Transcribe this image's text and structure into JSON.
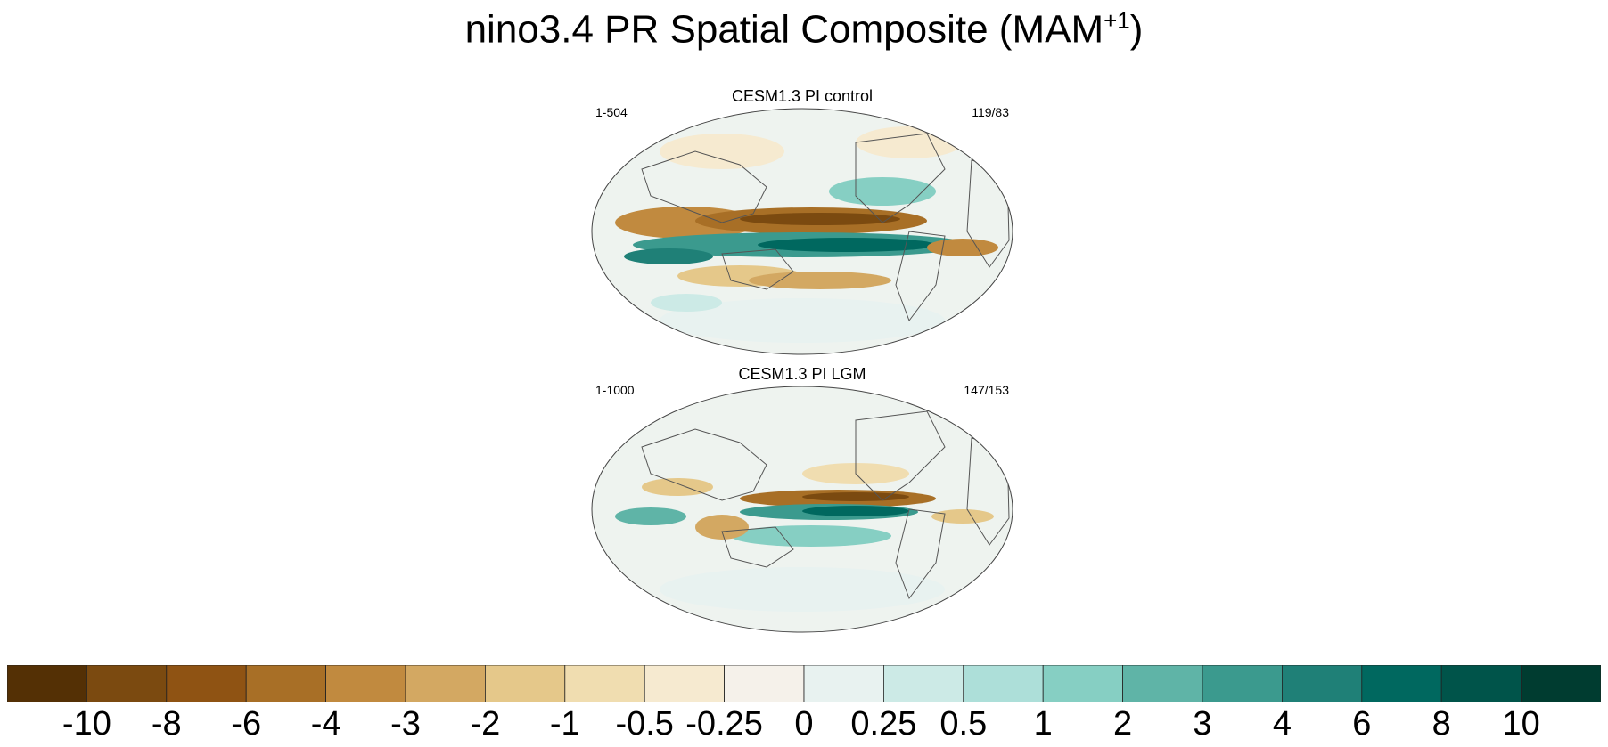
{
  "title": {
    "main": "nino3.4 PR Spatial Composite (MAM",
    "sup": "+1",
    "close": ")"
  },
  "panels": [
    {
      "title": "CESM1.3 PI control",
      "left_label": "1-504",
      "right_label": "119/83"
    },
    {
      "title": "CESM1.3 PI LGM",
      "left_label": "1-1000",
      "right_label": "147/153"
    }
  ],
  "colorbar": {
    "colors": [
      "#543005",
      "#7b4a10",
      "#8f5313",
      "#a86f26",
      "#c18a3f",
      "#d3a862",
      "#e5c88a",
      "#f0ddb0",
      "#f6ead0",
      "#f5f1ea",
      "#e8f2f0",
      "#cceae6",
      "#addfd9",
      "#86cfc3",
      "#5fb4a7",
      "#3b9a8e",
      "#1f8077",
      "#00685f",
      "#00544a",
      "#003c30"
    ],
    "labels": [
      "-10",
      "-8",
      "-6",
      "-4",
      "-3",
      "-2",
      "-1",
      "-0.5",
      "-0.25",
      "0",
      "0.25",
      "0.5",
      "1",
      "2",
      "3",
      "4",
      "6",
      "8",
      "10"
    ]
  }
}
